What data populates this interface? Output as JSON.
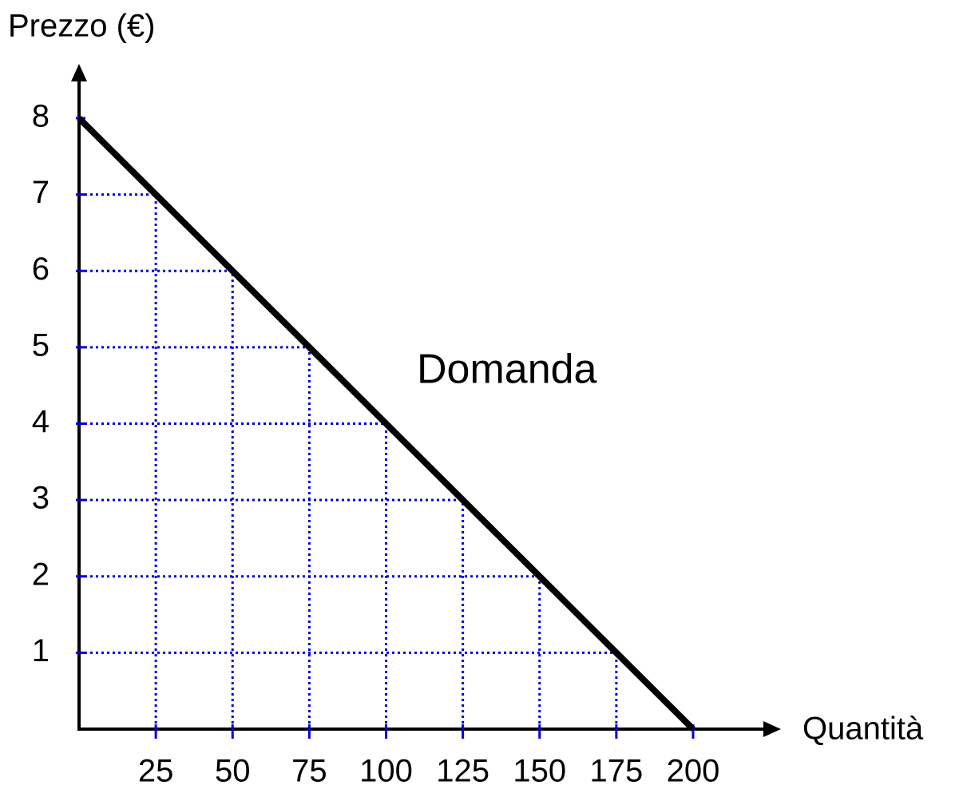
{
  "chart_data": {
    "type": "line",
    "ylabel": "Prezzo (€)",
    "xlabel": "Quantità",
    "annotation": "Domanda",
    "x": [
      0,
      25,
      50,
      75,
      100,
      125,
      150,
      175,
      200
    ],
    "series": [
      {
        "name": "Domanda",
        "color": "#000000",
        "values": [
          8,
          7,
          6,
          5,
          4,
          3,
          2,
          1,
          0
        ]
      }
    ],
    "xlim": [
      0,
      200
    ],
    "ylim": [
      0,
      8
    ],
    "xticks": [
      25,
      50,
      75,
      100,
      125,
      150,
      175,
      200
    ],
    "yticks": [
      1,
      2,
      3,
      4,
      5,
      6,
      7,
      8
    ],
    "grid_color": "#0000dd"
  }
}
